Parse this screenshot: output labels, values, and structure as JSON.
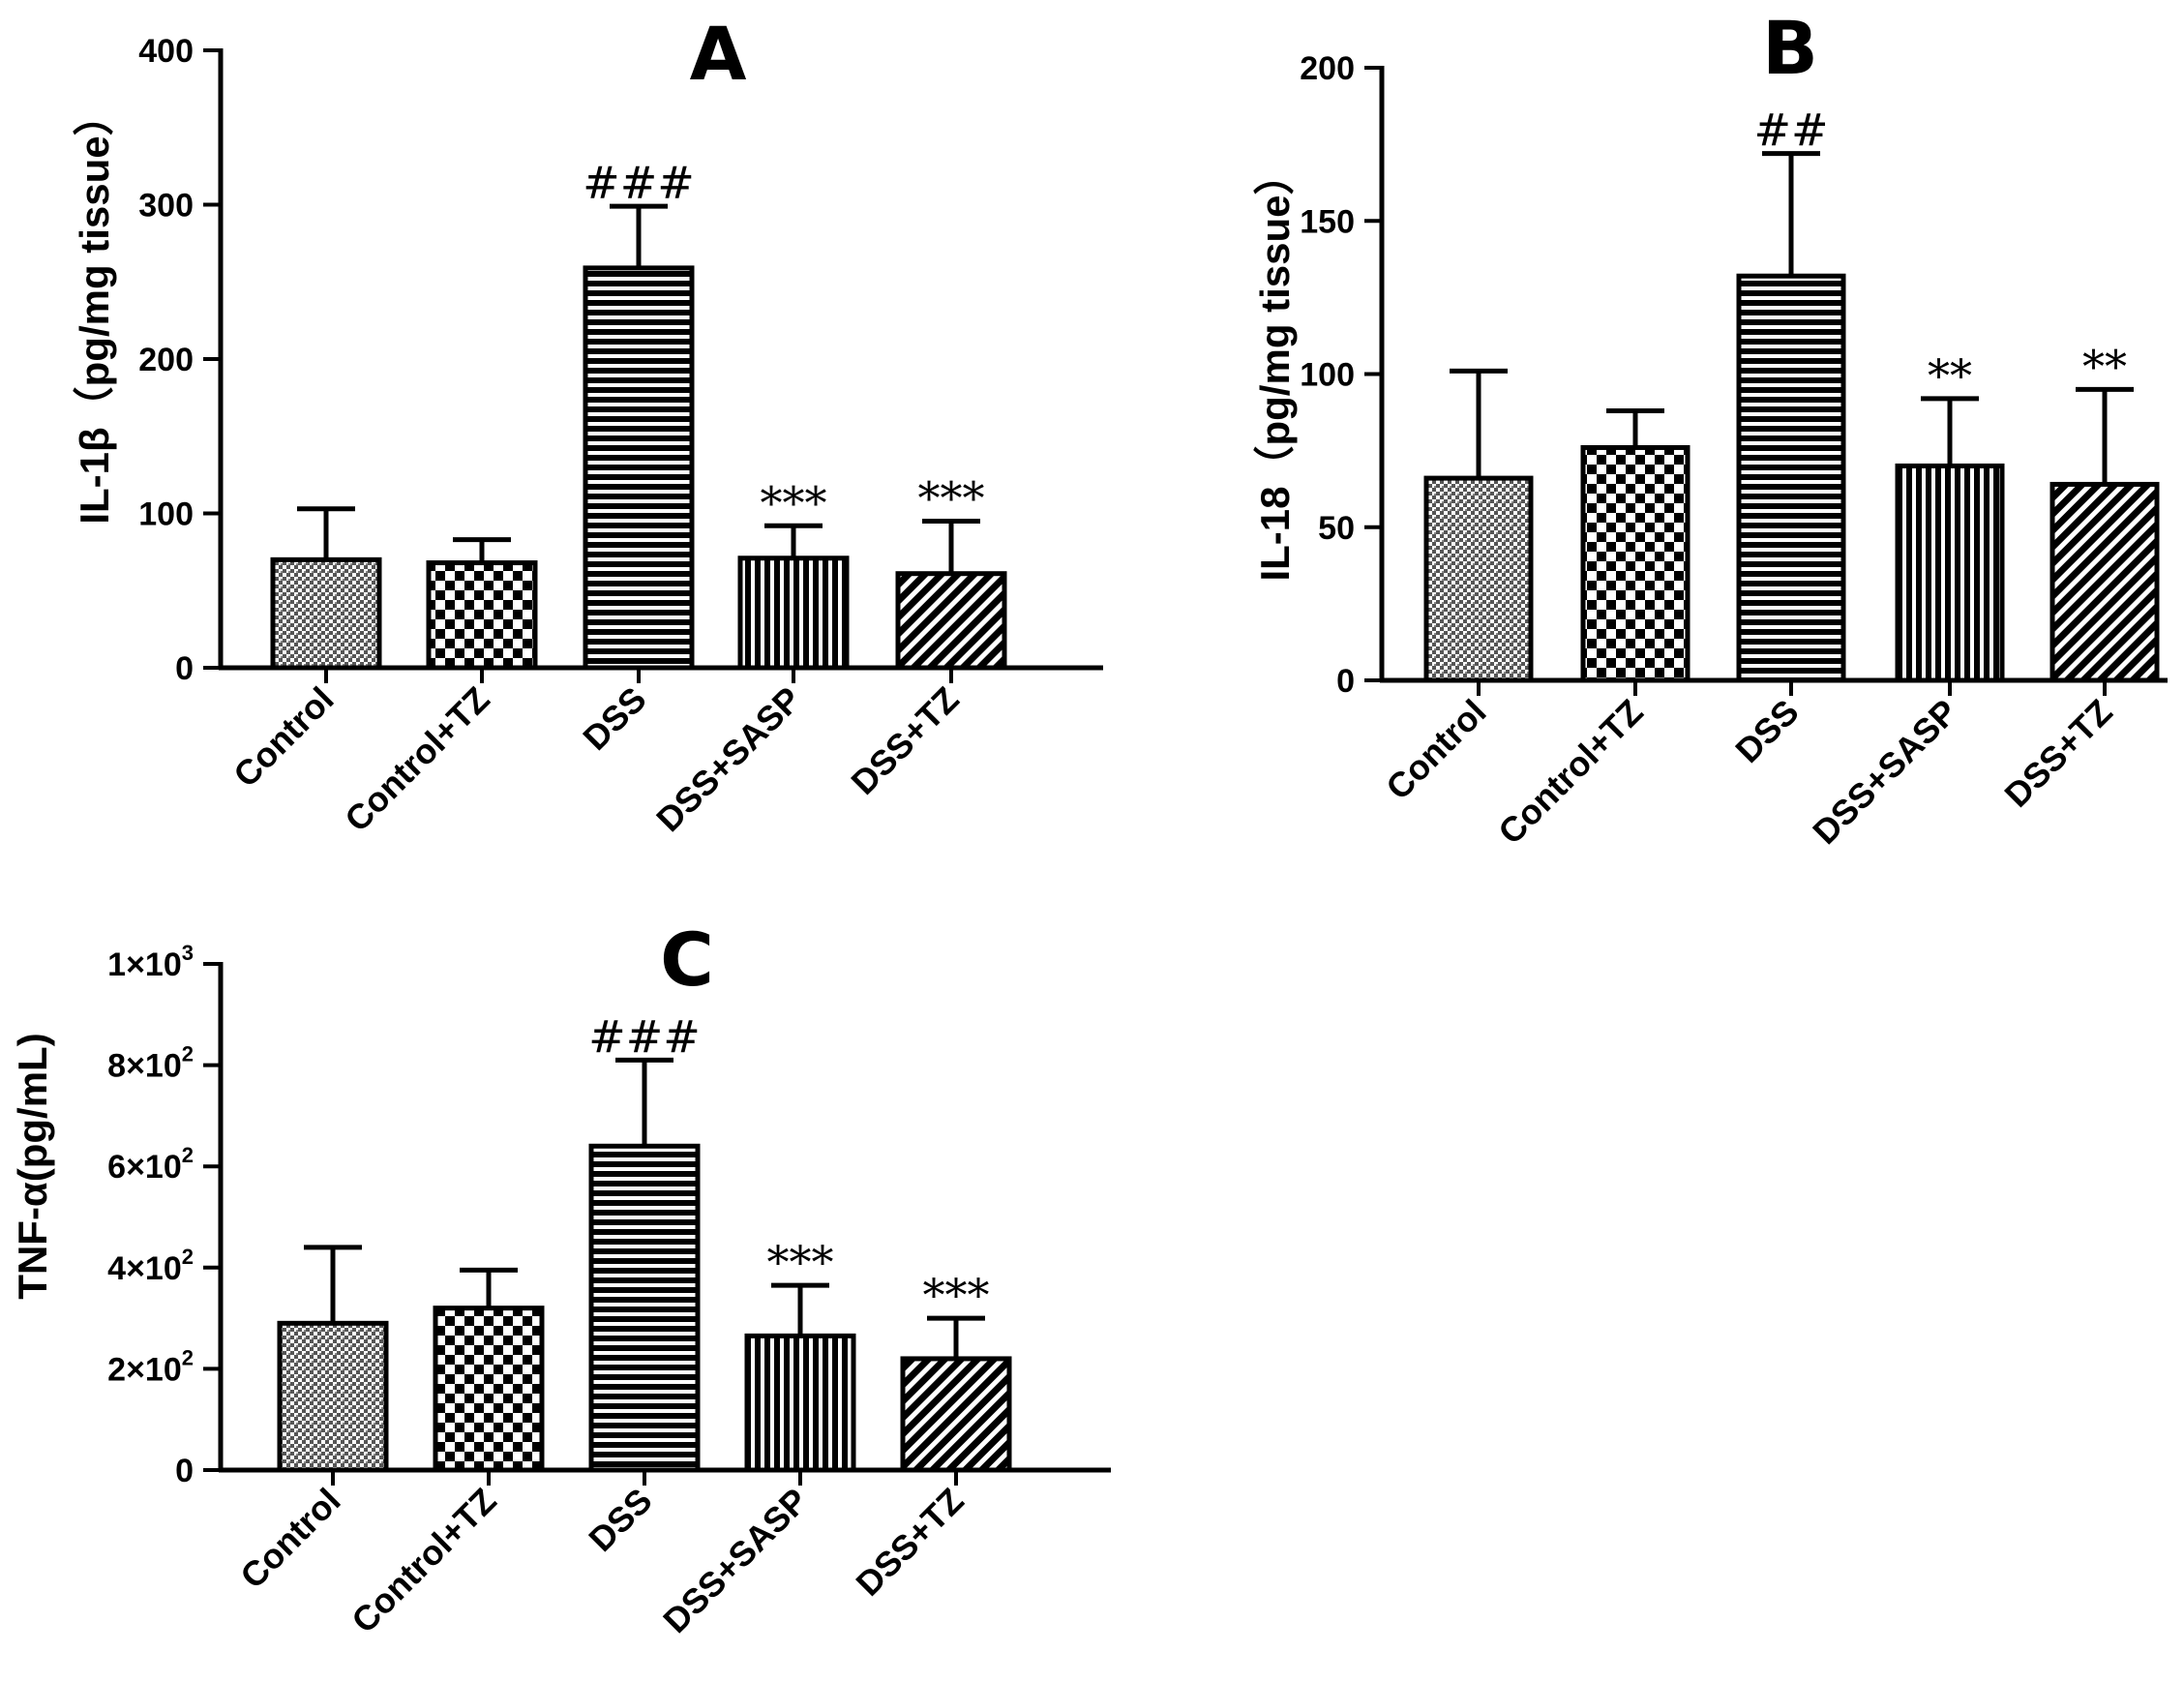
{
  "chart_data": [
    {
      "panel": "A",
      "type": "bar",
      "categories": [
        "Control",
        "Control+TZ",
        "DSS",
        "DSS+SASP",
        "DSS+TZ"
      ],
      "values": [
        70,
        68,
        259,
        71,
        61
      ],
      "errors": [
        33,
        15,
        40,
        21,
        34
      ],
      "annotations": [
        "",
        "",
        "###",
        "***",
        "***"
      ],
      "patterns": [
        "grain",
        "checker",
        "hstripe",
        "vstripe",
        "diag"
      ],
      "ylabel": "IL-1β（pg/mg tissue）",
      "ylim": [
        0,
        400
      ],
      "yticks": [
        0,
        100,
        200,
        300,
        400
      ],
      "ytick_labels": [
        "0",
        "100",
        "200",
        "300",
        "400"
      ]
    },
    {
      "panel": "B",
      "type": "bar",
      "categories": [
        "Control",
        "Control+TZ",
        "DSS",
        "DSS+SASP",
        "DSS+TZ"
      ],
      "values": [
        66,
        76,
        132,
        70,
        64
      ],
      "errors": [
        35,
        12,
        40,
        22,
        31
      ],
      "annotations": [
        "",
        "",
        "##",
        "**",
        "**"
      ],
      "patterns": [
        "grain",
        "checker",
        "hstripe",
        "vstripe",
        "diag"
      ],
      "ylabel": "IL-18（pg/mg tissue）",
      "ylim": [
        0,
        200
      ],
      "yticks": [
        0,
        50,
        100,
        150,
        200
      ],
      "ytick_labels": [
        "0",
        "50",
        "100",
        "150",
        "200"
      ]
    },
    {
      "panel": "C",
      "type": "bar",
      "categories": [
        "Control",
        "Control+TZ",
        "DSS",
        "DSS+SASP",
        "DSS+TZ"
      ],
      "values": [
        290,
        320,
        640,
        265,
        220
      ],
      "errors": [
        150,
        75,
        170,
        100,
        80
      ],
      "annotations": [
        "",
        "",
        "###",
        "***",
        "***"
      ],
      "patterns": [
        "grain",
        "checker",
        "hstripe",
        "vstripe",
        "diag"
      ],
      "ylabel": "TNF-α(pg/mL)",
      "ylim": [
        0,
        1000
      ],
      "yticks": [
        0,
        200,
        400,
        600,
        800,
        1000
      ],
      "ytick_labels": [
        "0",
        "2×10",
        "4×10",
        "6×10",
        "8×10",
        "1×10"
      ],
      "ytick_exponents": [
        "",
        "2",
        "2",
        "2",
        "2",
        "3"
      ]
    }
  ]
}
